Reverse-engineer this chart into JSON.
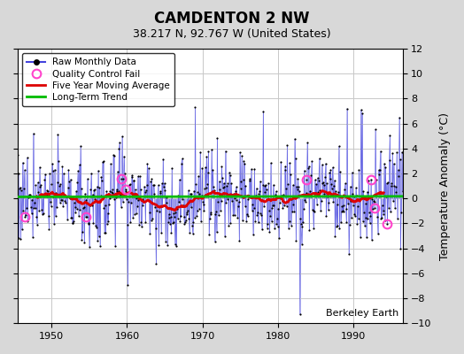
{
  "title": "CAMDENTON 2 NW",
  "subtitle": "38.217 N, 92.767 W (United States)",
  "ylabel": "Temperature Anomaly (°C)",
  "watermark": "Berkeley Earth",
  "xlim": [
    1945.5,
    1996.5
  ],
  "ylim": [
    -10,
    12
  ],
  "yticks": [
    -10,
    -8,
    -6,
    -4,
    -2,
    0,
    2,
    4,
    6,
    8,
    10,
    12
  ],
  "xticks": [
    1950,
    1960,
    1970,
    1980,
    1990
  ],
  "start_year": 1945.5,
  "end_year": 1996.5,
  "figsize": [
    5.24,
    4.0
  ],
  "dpi": 100,
  "fig_bg_color": "#d8d8d8",
  "plot_bg_color": "#ffffff",
  "grid_color": "#c8c8c8",
  "line_color": "#4444dd",
  "ma_color": "#dd0000",
  "trend_color": "#00bb00",
  "qc_color": "#ff44cc",
  "seed": 77,
  "n_months": 612
}
